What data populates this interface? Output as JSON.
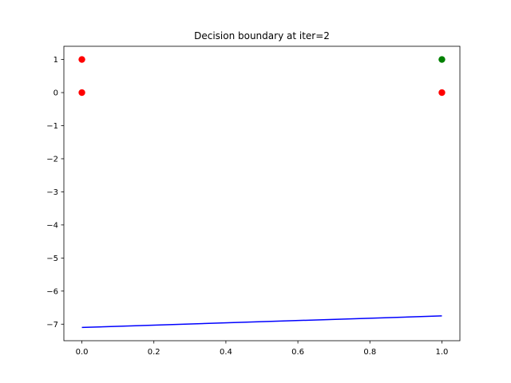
{
  "chart_data": {
    "type": "scatter",
    "title": "Decision boundary at iter=2",
    "xlabel": "",
    "ylabel": "",
    "xlim": [
      -0.05,
      1.05
    ],
    "ylim": [
      -7.5,
      1.4
    ],
    "xticks": [
      0.0,
      0.2,
      0.4,
      0.6,
      0.8,
      1.0
    ],
    "xtick_labels": [
      "0.0",
      "0.2",
      "0.4",
      "0.6",
      "0.8",
      "1.0"
    ],
    "yticks": [
      1,
      0,
      -1,
      -2,
      -3,
      -4,
      -5,
      -6,
      -7
    ],
    "ytick_labels": [
      "1",
      "0",
      "−1",
      "−2",
      "−3",
      "−4",
      "−5",
      "−6",
      "−7"
    ],
    "grid": false,
    "points": [
      {
        "x": 0,
        "y": 1,
        "color": "#ff0000"
      },
      {
        "x": 0,
        "y": 0,
        "color": "#ff0000"
      },
      {
        "x": 1,
        "y": 1,
        "color": "#008000"
      },
      {
        "x": 1,
        "y": 0,
        "color": "#ff0000"
      }
    ],
    "line": {
      "color": "#0000ff",
      "x": [
        0,
        1
      ],
      "y": [
        -7.1,
        -6.75
      ]
    }
  }
}
